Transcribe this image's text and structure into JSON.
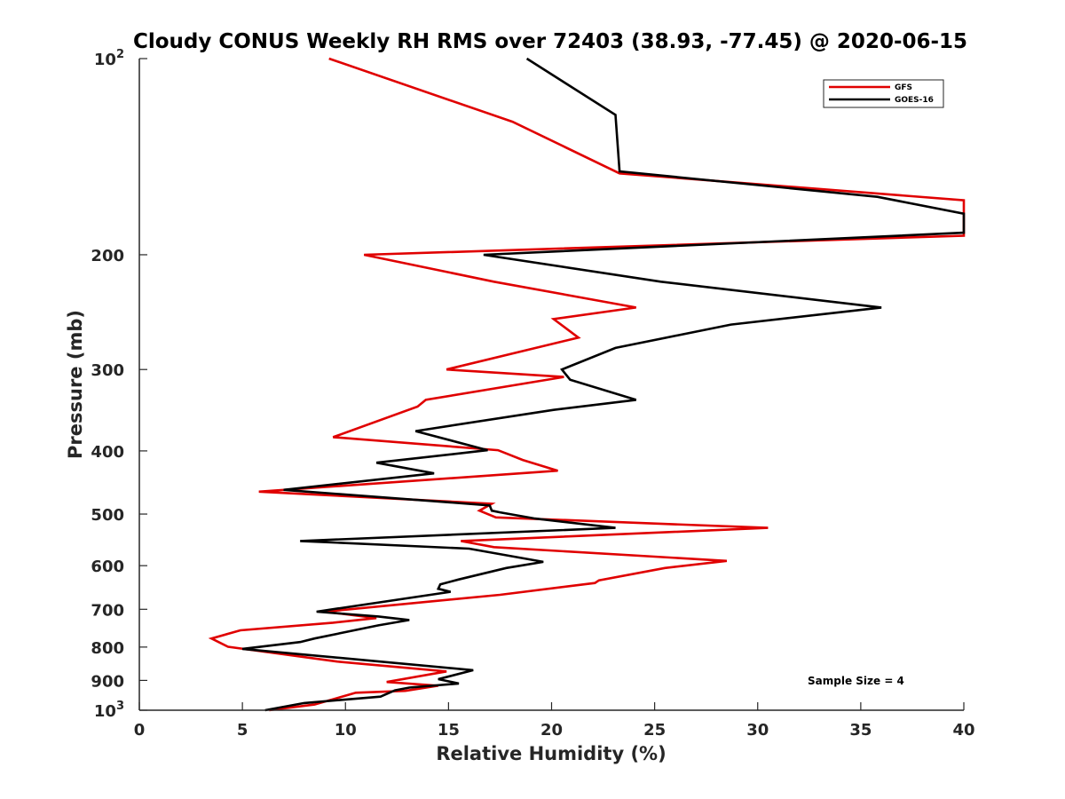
{
  "chart_data": {
    "type": "line",
    "title": "Cloudy CONUS Weekly RH RMS over 72403 (38.93, -77.45) @ 2020-06-15",
    "xlabel": "Relative Humidity (%)",
    "ylabel": "Pressure (mb)",
    "xlim": [
      0,
      40
    ],
    "ylim": [
      100,
      1000
    ],
    "yscale": "log",
    "y_reversed": true,
    "grid": false,
    "legend_position": "top-right",
    "x_ticks": [
      "0",
      "5",
      "10",
      "15",
      "20",
      "25",
      "30",
      "35",
      "40"
    ],
    "y_ticks": [
      {
        "value": 100,
        "base": "10",
        "exp": "2"
      },
      {
        "value": 200,
        "label": "200"
      },
      {
        "value": 300,
        "label": "300"
      },
      {
        "value": 400,
        "label": "400"
      },
      {
        "value": 500,
        "label": "500"
      },
      {
        "value": 600,
        "label": "600"
      },
      {
        "value": 700,
        "label": "700"
      },
      {
        "value": 800,
        "label": "800"
      },
      {
        "value": 900,
        "label": "900"
      },
      {
        "value": 1000,
        "base": "10",
        "exp": "3"
      }
    ],
    "series": [
      {
        "name": "GFS",
        "color": "#e00000",
        "points": [
          [
            9.2,
            100
          ],
          [
            18.1,
            125
          ],
          [
            23.3,
            150
          ],
          [
            40.0,
            165
          ],
          [
            40.0,
            187
          ],
          [
            10.9,
            200
          ],
          [
            17.2,
            220
          ],
          [
            24.1,
            241
          ],
          [
            20.1,
            251
          ],
          [
            21.3,
            268
          ],
          [
            14.9,
            300
          ],
          [
            20.6,
            308
          ],
          [
            13.9,
            334
          ],
          [
            13.5,
            342
          ],
          [
            9.4,
            381
          ],
          [
            17.4,
            399
          ],
          [
            18.6,
            413
          ],
          [
            20.3,
            429
          ],
          [
            5.8,
            462
          ],
          [
            17.1,
            482
          ],
          [
            16.5,
            494
          ],
          [
            17.3,
            506
          ],
          [
            30.5,
            525
          ],
          [
            15.6,
            550
          ],
          [
            17.2,
            562
          ],
          [
            28.5,
            590
          ],
          [
            25.5,
            605
          ],
          [
            22.3,
            632
          ],
          [
            22.1,
            638
          ],
          [
            17.5,
            665
          ],
          [
            9.0,
            706
          ],
          [
            11.5,
            722
          ],
          [
            9.4,
            734
          ],
          [
            4.9,
            754
          ],
          [
            3.5,
            776
          ],
          [
            4.3,
            799
          ],
          [
            9.6,
            842
          ],
          [
            14.9,
            872
          ],
          [
            12.0,
            905
          ],
          [
            14.5,
            917
          ],
          [
            12.9,
            934
          ],
          [
            10.5,
            940
          ],
          [
            8.5,
            980
          ],
          [
            6.3,
            1000
          ]
        ]
      },
      {
        "name": "GOES-16",
        "color": "#000000",
        "points": [
          [
            18.8,
            100
          ],
          [
            23.1,
            122
          ],
          [
            23.3,
            149
          ],
          [
            35.8,
            163
          ],
          [
            40.0,
            173
          ],
          [
            40.0,
            185
          ],
          [
            16.7,
            200
          ],
          [
            25.3,
            220
          ],
          [
            36.0,
            241
          ],
          [
            28.7,
            256
          ],
          [
            23.1,
            278
          ],
          [
            20.5,
            300
          ],
          [
            20.9,
            311
          ],
          [
            24.1,
            334
          ],
          [
            20.1,
            346
          ],
          [
            13.4,
            373
          ],
          [
            16.9,
            399
          ],
          [
            11.5,
            417
          ],
          [
            14.3,
            433
          ],
          [
            7.0,
            459
          ],
          [
            17.0,
            485
          ],
          [
            17.1,
            494
          ],
          [
            17.5,
            497
          ],
          [
            19.2,
            508
          ],
          [
            23.1,
            525
          ],
          [
            7.8,
            550
          ],
          [
            16.0,
            565
          ],
          [
            19.6,
            592
          ],
          [
            17.8,
            605
          ],
          [
            15.5,
            630
          ],
          [
            14.6,
            641
          ],
          [
            14.5,
            651
          ],
          [
            15.1,
            658
          ],
          [
            8.6,
            706
          ],
          [
            11.6,
            718
          ],
          [
            13.1,
            727
          ],
          [
            11.6,
            741
          ],
          [
            8.5,
            776
          ],
          [
            7.8,
            786
          ],
          [
            5.0,
            805
          ],
          [
            16.2,
            868
          ],
          [
            14.5,
            896
          ],
          [
            15.5,
            910
          ],
          [
            13.1,
            923
          ],
          [
            12.4,
            932
          ],
          [
            11.7,
            953
          ],
          [
            8.0,
            975
          ],
          [
            6.1,
            1000
          ]
        ]
      }
    ],
    "annotations": [
      "Sample Size = 4"
    ]
  }
}
